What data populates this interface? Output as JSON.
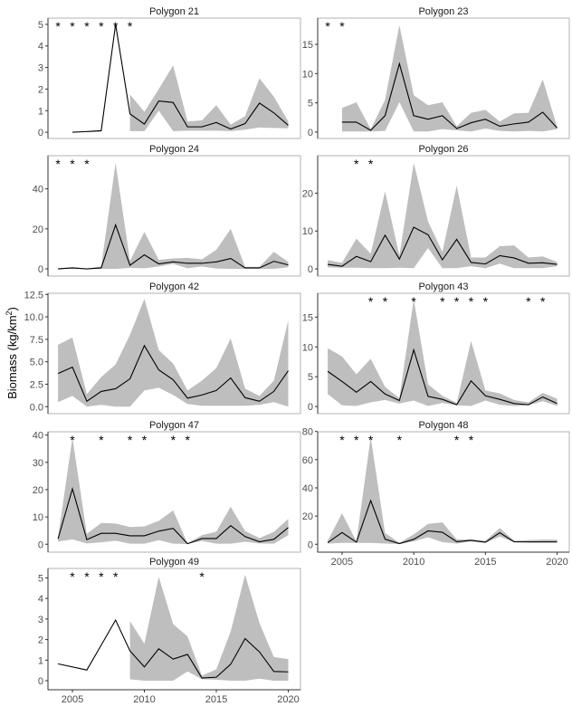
{
  "ylabel": "Biomass (kg/km",
  "ylabel_sup": "2",
  "ylabel_close": ")",
  "colors": {
    "band": "#bebebe",
    "line": "#000000",
    "frame": "#b3b3b3",
    "axis": "#333333"
  },
  "chart_data": [
    {
      "type": "line",
      "title": "Polygon 21",
      "years": [
        2004,
        2005,
        2006,
        2007,
        2008,
        2009,
        2010,
        2011,
        2012,
        2013,
        2014,
        2015,
        2016,
        2017,
        2018,
        2019,
        2020
      ],
      "mean": [
        null,
        0,
        0.03,
        0.07,
        5,
        0.85,
        0.38,
        1.45,
        1.38,
        0.25,
        0.25,
        0.45,
        0.15,
        0.4,
        1.35,
        0.9,
        0.32
      ],
      "lower": [
        null,
        0,
        0.01,
        0.03,
        null,
        0.05,
        0.05,
        1.0,
        0.05,
        0.07,
        0.07,
        0.07,
        0.05,
        0.12,
        0.22,
        0.2,
        0.18
      ],
      "upper": [
        null,
        0.01,
        0.06,
        0.12,
        null,
        1.75,
        0.95,
        2.0,
        3.1,
        0.5,
        0.55,
        1.25,
        0.35,
        0.75,
        2.5,
        1.65,
        0.5
      ],
      "stars": [
        2004,
        2005,
        2006,
        2007,
        2008,
        2009
      ],
      "yticks": [
        "0",
        "1",
        "2",
        "3",
        "4",
        "5"
      ],
      "ylim": [
        -0.29,
        5.29
      ],
      "show_x": false
    },
    {
      "type": "line",
      "title": "Polygon 23",
      "years": [
        2004,
        2005,
        2006,
        2007,
        2008,
        2009,
        2010,
        2011,
        2012,
        2013,
        2014,
        2015,
        2016,
        2017,
        2018,
        2019,
        2020
      ],
      "mean": [
        null,
        1.7,
        1.7,
        0.3,
        2.8,
        11.7,
        2.8,
        2.2,
        2.8,
        0.6,
        1.6,
        2.2,
        1.0,
        1.4,
        1.7,
        3.4,
        0.7
      ],
      "lower": [
        null,
        0.1,
        0.1,
        0.1,
        0.2,
        5.1,
        0.1,
        0.1,
        0.5,
        0.3,
        0.1,
        0.6,
        0.2,
        0.1,
        0.2,
        0.1,
        0.5
      ],
      "upper": [
        null,
        4.1,
        5.1,
        0.5,
        5.5,
        18.3,
        6.3,
        4.6,
        5.1,
        1.0,
        3.3,
        3.8,
        1.8,
        3.2,
        3.3,
        9.0,
        0.9
      ],
      "stars": [
        2004,
        2005
      ],
      "yticks": [
        "0",
        "5",
        "10",
        "15"
      ],
      "ylim": [
        -1.1,
        19.5
      ],
      "show_x": false
    },
    {
      "type": "line",
      "title": "Polygon 24",
      "years": [
        2004,
        2005,
        2006,
        2007,
        2008,
        2009,
        2010,
        2011,
        2012,
        2013,
        2014,
        2015,
        2016,
        2017,
        2018,
        2019,
        2020
      ],
      "mean": [
        0,
        0.5,
        0,
        0.5,
        22,
        1.8,
        7,
        2.5,
        3.5,
        2.8,
        2.8,
        3.5,
        5.2,
        0.5,
        0.5,
        3.8,
        2.0
      ],
      "lower": [
        0,
        0,
        0,
        0,
        0,
        0.5,
        0.3,
        1.2,
        2.5,
        0.3,
        1.2,
        0.2,
        0,
        0,
        0,
        0,
        0.8
      ],
      "upper": [
        0.3,
        0.8,
        0.2,
        1.2,
        53,
        4,
        18.5,
        4.5,
        5.2,
        5.5,
        4.8,
        9.5,
        20,
        1,
        1,
        8.5,
        3.5
      ],
      "stars": [
        2004,
        2005,
        2006
      ],
      "yticks": [
        "0",
        "20",
        "40"
      ],
      "ylim": [
        -3.6,
        56.6
      ],
      "show_x": false
    },
    {
      "type": "line",
      "title": "Polygon 26",
      "years": [
        2004,
        2005,
        2006,
        2007,
        2008,
        2009,
        2010,
        2011,
        2012,
        2013,
        2014,
        2015,
        2016,
        2017,
        2018,
        2019,
        2020
      ],
      "mean": [
        1.2,
        0.7,
        3.3,
        1.9,
        8.9,
        2.6,
        11,
        9,
        2.4,
        7.8,
        1.7,
        1.3,
        3.5,
        2.9,
        1.5,
        1.6,
        1.2
      ],
      "lower": [
        0.4,
        0.3,
        0.3,
        0.2,
        0.2,
        0.3,
        0.2,
        5.5,
        0.2,
        0.2,
        0.7,
        0.2,
        1.4,
        0.2,
        0.2,
        0.2,
        0.7
      ],
      "upper": [
        2.3,
        1.6,
        8,
        4,
        20.5,
        3.5,
        28,
        12.5,
        4.5,
        22,
        3,
        3,
        6,
        6.2,
        3,
        3.3,
        1.8
      ],
      "stars": [
        2006,
        2007
      ],
      "yticks": [
        "0",
        "10",
        "20"
      ],
      "ylim": [
        -1.9,
        29.9
      ],
      "show_x": false
    },
    {
      "type": "line",
      "title": "Polygon 42",
      "years": [
        2004,
        2005,
        2006,
        2007,
        2008,
        2009,
        2010,
        2011,
        2012,
        2013,
        2014,
        2015,
        2016,
        2017,
        2018,
        2019,
        2020
      ],
      "mean": [
        3.7,
        4.4,
        0.6,
        1.7,
        2.0,
        3.1,
        6.8,
        4.1,
        3.0,
        0.95,
        1.3,
        1.8,
        3.2,
        1.0,
        0.6,
        1.7,
        4.0
      ],
      "lower": [
        0.5,
        1.2,
        0.0,
        0.2,
        0.0,
        0.0,
        1.8,
        2.1,
        1.3,
        0.3,
        0.1,
        0.1,
        0.1,
        0.1,
        0.2,
        0.5,
        0.0
      ],
      "upper": [
        6.9,
        7.7,
        1.4,
        3.3,
        4.7,
        8.0,
        12.0,
        6.3,
        4.8,
        1.8,
        2.9,
        4.3,
        7.6,
        2.0,
        1.2,
        2.9,
        9.6
      ],
      "stars": [],
      "yticks": [
        "0.0",
        "2.5",
        "5.0",
        "7.5",
        "10.0",
        "12.5"
      ],
      "ylim": [
        -0.78,
        12.63
      ],
      "show_x": false
    },
    {
      "type": "line",
      "title": "Polygon 43",
      "years": [
        2004,
        2005,
        2006,
        2007,
        2008,
        2009,
        2010,
        2011,
        2012,
        2013,
        2014,
        2015,
        2016,
        2017,
        2018,
        2019,
        2020
      ],
      "mean": [
        5.9,
        4.2,
        2.4,
        4.2,
        2.1,
        1.0,
        9.5,
        1.7,
        1.2,
        0.3,
        4.3,
        1.8,
        1.2,
        0.5,
        0.3,
        1.6,
        0.5
      ],
      "lower": [
        2.1,
        0.2,
        0.1,
        0.7,
        1.1,
        0.5,
        1.0,
        0.1,
        0.6,
        0.2,
        0.1,
        1.0,
        0.3,
        0.1,
        0.2,
        0.9,
        0.1
      ],
      "upper": [
        9.8,
        8.4,
        5.4,
        8.0,
        3.3,
        1.4,
        18,
        3.7,
        1.8,
        0.6,
        11,
        2.7,
        2.2,
        1.1,
        0.7,
        2.3,
        1.3
      ],
      "stars": [
        2007,
        2008,
        2010,
        2012,
        2013,
        2014,
        2015,
        2018,
        2019
      ],
      "yticks": [
        "0",
        "5",
        "10",
        "15"
      ],
      "ylim": [
        -1.2,
        19.0
      ],
      "show_x": false
    },
    {
      "type": "line",
      "title": "Polygon 47",
      "years": [
        2004,
        2005,
        2006,
        2007,
        2008,
        2009,
        2010,
        2011,
        2012,
        2013,
        2014,
        2015,
        2016,
        2017,
        2018,
        2019,
        2020
      ],
      "mean": [
        2,
        20.3,
        1.7,
        4.0,
        4.0,
        3.1,
        3.1,
        4.8,
        5.8,
        0.2,
        2.1,
        2.1,
        6.8,
        2.8,
        0.9,
        1.8,
        6.1
      ],
      "lower": [
        1.0,
        1.8,
        0.3,
        0.7,
        1.3,
        0.2,
        0.2,
        1.5,
        0.2,
        0.1,
        1.2,
        0.2,
        0.2,
        0.9,
        0.3,
        0.2,
        3.3
      ],
      "upper": [
        2.5,
        39,
        3.8,
        7.8,
        7.6,
        6.3,
        6.5,
        8.6,
        12.4,
        0.3,
        3.3,
        4.6,
        13.7,
        4.8,
        2.3,
        4.5,
        9.3
      ],
      "stars": [
        2005,
        2007,
        2009,
        2010,
        2012,
        2013
      ],
      "yticks": [
        "0",
        "10",
        "20",
        "30",
        "40"
      ],
      "ylim": [
        -2.9,
        41.2
      ],
      "show_x": false
    },
    {
      "type": "line",
      "title": "Polygon 48",
      "years": [
        2004,
        2005,
        2006,
        2007,
        2008,
        2009,
        2010,
        2011,
        2012,
        2013,
        2014,
        2015,
        2016,
        2017,
        2018,
        2019,
        2020
      ],
      "mean": [
        1.2,
        8.3,
        1.5,
        31,
        3.6,
        0.5,
        3.5,
        9.5,
        8.5,
        1.8,
        2.8,
        1.4,
        8.2,
        1.7,
        1.7,
        1.7,
        1.7
      ],
      "lower": [
        0.5,
        1,
        1,
        1,
        0.5,
        0.2,
        2,
        5,
        1.5,
        0.5,
        2,
        1,
        5.5,
        1.5,
        1,
        1,
        1
      ],
      "upper": [
        2.5,
        22,
        2,
        76,
        8,
        1,
        7,
        14.5,
        15.5,
        3.5,
        3.5,
        2.5,
        11.5,
        2.5,
        3,
        3.3,
        3.3
      ],
      "stars": [
        2005,
        2006,
        2007,
        2009,
        2013,
        2014
      ],
      "yticks": [
        "0",
        "20",
        "40",
        "60",
        "80"
      ],
      "ylim": [
        -5.6,
        79.8
      ],
      "show_x": true
    },
    {
      "type": "line",
      "title": "Polygon 49",
      "years": [
        2004,
        2005,
        2006,
        2007,
        2008,
        2009,
        2010,
        2011,
        2012,
        2013,
        2014,
        2015,
        2016,
        2017,
        2018,
        2019,
        2020
      ],
      "mean": [
        0.82,
        null,
        0.52,
        1.73,
        2.95,
        1.45,
        0.67,
        1.55,
        1.05,
        1.28,
        0.13,
        0.17,
        0.8,
        2.05,
        1.4,
        0.45,
        0.43
      ],
      "lower": [
        null,
        null,
        null,
        null,
        null,
        0.07,
        0,
        0,
        0,
        0.45,
        0.07,
        0.05,
        0,
        0,
        0.1,
        0,
        0
      ],
      "upper": [
        null,
        null,
        null,
        null,
        null,
        2.9,
        1.8,
        5.05,
        2.75,
        2.15,
        0.25,
        0.55,
        2.4,
        5.15,
        2.8,
        1.15,
        1.05
      ],
      "stars": [
        2005,
        2006,
        2007,
        2008,
        2014
      ],
      "yticks": [
        "0",
        "1",
        "2",
        "3",
        "4",
        "5"
      ],
      "ylim": [
        -0.44,
        5.46
      ],
      "show_x": true
    }
  ],
  "xticks": [
    "2005",
    "2010",
    "2015",
    "2020"
  ],
  "xlim": [
    2003.3,
    2020.85
  ]
}
